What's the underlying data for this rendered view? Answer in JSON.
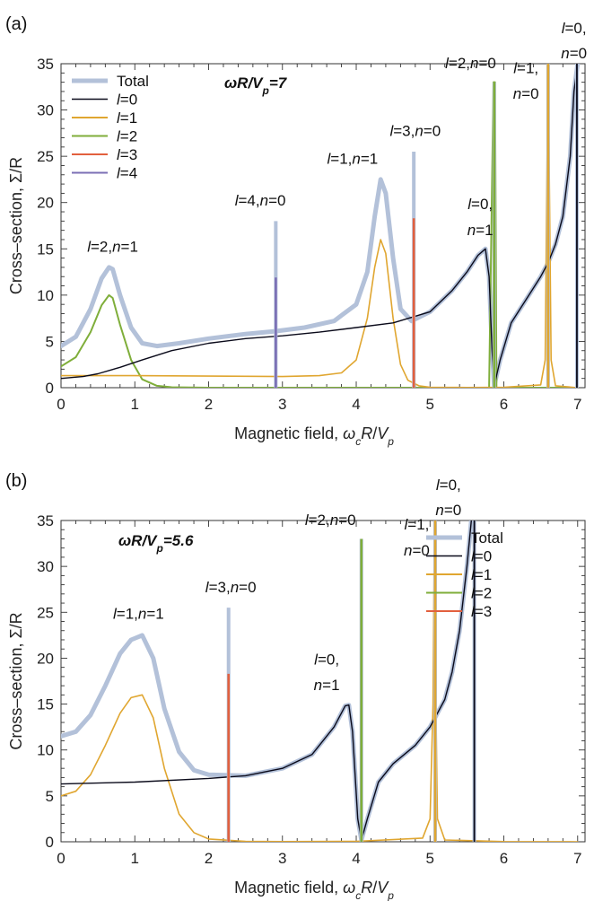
{
  "colors": {
    "total": "#b3c1d9",
    "l0": "#0a0a1a",
    "l1": "#e0a630",
    "l2": "#7fae3a",
    "l3": "#e2603e",
    "l4": "#7b6fb5"
  },
  "chart_data": [
    {
      "type": "line",
      "panel_label": "(a)",
      "parameter_text": "ωR/Vp=7",
      "xlabel": "Magnetic field, ωcR/Vp",
      "ylabel": "Cross–section, Σ/R",
      "xlim": [
        0,
        7.1
      ],
      "ylim": [
        0,
        35
      ],
      "xticks": [
        0,
        1,
        2,
        3,
        4,
        5,
        6,
        7
      ],
      "yticks": [
        0,
        5,
        10,
        15,
        20,
        25,
        30,
        35
      ],
      "grid": false,
      "legend_position": "top-left",
      "series": [
        {
          "name": "Total",
          "key": "total",
          "x": [
            0,
            0.2,
            0.4,
            0.55,
            0.65,
            0.7,
            0.8,
            0.95,
            1.1,
            1.3,
            1.6,
            2.0,
            2.5,
            2.9,
            3.3,
            3.7,
            4.0,
            4.15,
            4.25,
            4.33,
            4.4,
            4.5,
            4.6,
            4.75,
            5.0,
            5.3,
            5.5,
            5.65,
            5.75,
            5.8,
            5.84,
            5.87,
            5.95,
            6.1,
            6.3,
            6.5,
            6.6,
            6.7,
            6.8,
            6.9,
            6.95,
            7.0
          ],
          "y": [
            4.5,
            5.5,
            8.5,
            11.8,
            13.0,
            12.8,
            10.0,
            6.5,
            4.8,
            4.5,
            4.8,
            5.3,
            5.8,
            6.1,
            6.5,
            7.2,
            9.0,
            12.5,
            18.5,
            22.5,
            21.0,
            14.0,
            8.5,
            7.2,
            8.2,
            10.5,
            12.5,
            14.3,
            15.0,
            12.0,
            4.0,
            0.2,
            3.0,
            7.0,
            9.5,
            12.0,
            13.5,
            15.5,
            18.5,
            25.0,
            32.0,
            35.0
          ]
        },
        {
          "name": "l=0",
          "key": "l0",
          "x": [
            0,
            0.3,
            0.5,
            0.8,
            1.1,
            1.5,
            2.0,
            2.5,
            3.0,
            3.5,
            4.0,
            4.5,
            5.0,
            5.3,
            5.5,
            5.65,
            5.75,
            5.8,
            5.84,
            5.87,
            5.95,
            6.1,
            6.3,
            6.5,
            6.6,
            6.7,
            6.8,
            6.9,
            6.95,
            7.0
          ],
          "y": [
            1.0,
            1.2,
            1.5,
            2.2,
            3.0,
            4.0,
            4.8,
            5.3,
            5.6,
            6.0,
            6.5,
            7.0,
            8.2,
            10.5,
            12.5,
            14.3,
            15.0,
            12.0,
            4.0,
            0.2,
            3.0,
            7.0,
            9.5,
            12.0,
            13.5,
            15.5,
            18.5,
            25.0,
            32.0,
            35.0
          ]
        },
        {
          "name": "l=1",
          "key": "l1",
          "x": [
            0,
            1.0,
            2.0,
            3.0,
            3.5,
            3.8,
            4.0,
            4.15,
            4.25,
            4.33,
            4.4,
            4.5,
            4.6,
            4.7,
            4.85,
            5.0,
            5.5,
            6.0,
            6.5,
            6.56,
            6.58,
            6.6,
            6.62,
            6.64,
            6.7,
            7.0
          ],
          "y": [
            1.3,
            1.3,
            1.25,
            1.2,
            1.3,
            1.6,
            3.0,
            7.5,
            13.0,
            16.0,
            14.5,
            7.5,
            2.5,
            0.8,
            0.2,
            0.05,
            0.02,
            0.05,
            0.3,
            3.0,
            20.0,
            35.0,
            20.0,
            3.0,
            0.2,
            0.0
          ]
        },
        {
          "name": "l=2",
          "key": "l2",
          "x": [
            0,
            0.2,
            0.4,
            0.55,
            0.65,
            0.7,
            0.8,
            0.95,
            1.1,
            1.3,
            1.5,
            2.0,
            5.8,
            5.86,
            5.88,
            5.9,
            7.0
          ],
          "y": [
            2.3,
            3.3,
            6.0,
            8.9,
            10.0,
            9.7,
            6.8,
            3.0,
            0.9,
            0.2,
            0.05,
            0.0,
            0.0,
            33.0,
            33.0,
            0.0,
            0.0
          ]
        },
        {
          "name": "l=3",
          "key": "l3",
          "x": [
            4.76,
            4.78,
            4.78,
            4.8
          ],
          "y": [
            0,
            18.3,
            18.3,
            0
          ]
        },
        {
          "name": "l=4",
          "key": "l4",
          "x": [
            2.89,
            2.91,
            2.91,
            2.93
          ],
          "y": [
            0,
            11.9,
            11.9,
            0
          ]
        }
      ],
      "spikes": [
        {
          "x": 2.91,
          "total": 18.0,
          "key": "l4",
          "part": 11.9
        },
        {
          "x": 4.78,
          "total": 25.5,
          "key": "l3",
          "part": 18.3
        },
        {
          "x": 5.87,
          "total": 33.0,
          "key": "l2",
          "part": 33.0
        },
        {
          "x": 6.6,
          "total": 35.0,
          "key": "l1",
          "part": 35.0
        },
        {
          "x": 6.99,
          "total": 35.0,
          "key": "l0",
          "part": 35.0
        }
      ],
      "annotations": [
        {
          "text": "l=2,n=1",
          "x": 0.7,
          "y": 14.7
        },
        {
          "text": "l=4,n=0",
          "x": 2.7,
          "y": 19.7
        },
        {
          "text": "l=1,n=1",
          "x": 3.95,
          "y": 24.2
        },
        {
          "text": "l=3,n=0",
          "x": 4.8,
          "y": 27.2
        },
        {
          "text": "l=0,",
          "x": 5.68,
          "y": 19.3
        },
        {
          "text": "n=1",
          "x": 5.68,
          "y": 16.5
        },
        {
          "text": "l=2,n=0",
          "x": 5.55,
          "y": 34.5
        },
        {
          "text": "l=1,",
          "x": 6.3,
          "y": 34.0
        },
        {
          "text": "n=0",
          "x": 6.3,
          "y": 31.2
        },
        {
          "text": "l=0,",
          "x": 6.95,
          "y": 38.3
        },
        {
          "text": "n=0",
          "x": 6.95,
          "y": 35.6
        }
      ]
    },
    {
      "type": "line",
      "panel_label": "(b)",
      "parameter_text": "ωR/Vp=5.6",
      "xlabel": "Magnetic field, ωcR/Vp",
      "ylabel": "Cross–section, Σ/R",
      "xlim": [
        0,
        7.1
      ],
      "ylim": [
        0,
        35
      ],
      "xticks": [
        0,
        1,
        2,
        3,
        4,
        5,
        6,
        7
      ],
      "yticks": [
        0,
        5,
        10,
        15,
        20,
        25,
        30,
        35
      ],
      "grid": false,
      "legend_position": "top-right",
      "series": [
        {
          "name": "Total",
          "key": "total",
          "x": [
            0,
            0.2,
            0.4,
            0.6,
            0.8,
            0.95,
            1.1,
            1.25,
            1.4,
            1.6,
            1.8,
            2.0,
            2.5,
            3.0,
            3.4,
            3.7,
            3.85,
            3.9,
            3.95,
            4.02,
            4.07,
            4.15,
            4.3,
            4.5,
            4.8,
            5.0,
            5.2,
            5.3,
            5.4,
            5.5,
            5.56
          ],
          "y": [
            11.5,
            12.0,
            13.8,
            17.0,
            20.5,
            22.0,
            22.5,
            20.0,
            14.5,
            9.8,
            7.8,
            7.3,
            7.2,
            8.0,
            9.5,
            12.5,
            14.8,
            14.9,
            12.0,
            2.5,
            0.2,
            2.5,
            6.5,
            8.5,
            10.5,
            12.5,
            15.5,
            18.5,
            23.0,
            30.0,
            35.0
          ]
        },
        {
          "name": "l=0",
          "key": "l0",
          "x": [
            0,
            1.0,
            2.0,
            2.5,
            3.0,
            3.4,
            3.7,
            3.85,
            3.9,
            3.95,
            4.02,
            4.07,
            4.15,
            4.3,
            4.5,
            4.8,
            5.0,
            5.2,
            5.3,
            5.4,
            5.5,
            5.56
          ],
          "y": [
            6.3,
            6.5,
            6.9,
            7.2,
            8.0,
            9.5,
            12.5,
            14.8,
            14.9,
            12.0,
            2.5,
            0.2,
            2.5,
            6.5,
            8.5,
            10.5,
            12.5,
            15.5,
            18.5,
            23.0,
            30.0,
            35.0
          ]
        },
        {
          "name": "l=1",
          "key": "l1",
          "x": [
            0,
            0.2,
            0.4,
            0.6,
            0.8,
            0.95,
            1.1,
            1.25,
            1.4,
            1.6,
            1.8,
            2.0,
            2.5,
            3.0,
            4.0,
            4.9,
            5.0,
            5.04,
            5.06,
            5.08,
            5.1,
            5.2,
            6.0,
            7.0
          ],
          "y": [
            5.0,
            5.5,
            7.3,
            10.5,
            14.0,
            15.7,
            16.0,
            13.5,
            8.0,
            3.0,
            1.0,
            0.3,
            0.05,
            0.02,
            0.05,
            0.4,
            2.5,
            15.0,
            35.0,
            15.0,
            2.5,
            0.2,
            0.02,
            0.0
          ]
        },
        {
          "name": "l=2",
          "key": "l2",
          "x": [
            4.05,
            4.07,
            4.07,
            4.09
          ],
          "y": [
            0,
            33.0,
            33.0,
            0
          ]
        },
        {
          "name": "l=3",
          "key": "l3",
          "x": [
            2.25,
            2.27,
            2.27,
            2.29
          ],
          "y": [
            0,
            18.3,
            18.3,
            0
          ]
        }
      ],
      "spikes": [
        {
          "x": 2.27,
          "total": 25.5,
          "key": "l3",
          "part": 18.3
        },
        {
          "x": 4.07,
          "total": 33.0,
          "key": "l2",
          "part": 33.0
        },
        {
          "x": 5.07,
          "total": 35.0,
          "key": "l1",
          "part": 35.0
        },
        {
          "x": 5.6,
          "total": 35.0,
          "key": "l0",
          "part": 35.0
        }
      ],
      "annotations": [
        {
          "text": "l=1,n=1",
          "x": 1.05,
          "y": 24.3
        },
        {
          "text": "l=3,n=0",
          "x": 2.3,
          "y": 27.2
        },
        {
          "text": "l=0,",
          "x": 3.6,
          "y": 19.3
        },
        {
          "text": "n=1",
          "x": 3.6,
          "y": 16.5
        },
        {
          "text": "l=2,n=0",
          "x": 3.65,
          "y": 34.5
        },
        {
          "text": "l=1,",
          "x": 4.82,
          "y": 34.0
        },
        {
          "text": "n=0",
          "x": 4.82,
          "y": 31.2
        },
        {
          "text": "l=0,",
          "x": 5.25,
          "y": 38.3
        },
        {
          "text": "n=0",
          "x": 5.25,
          "y": 35.6
        }
      ]
    }
  ]
}
